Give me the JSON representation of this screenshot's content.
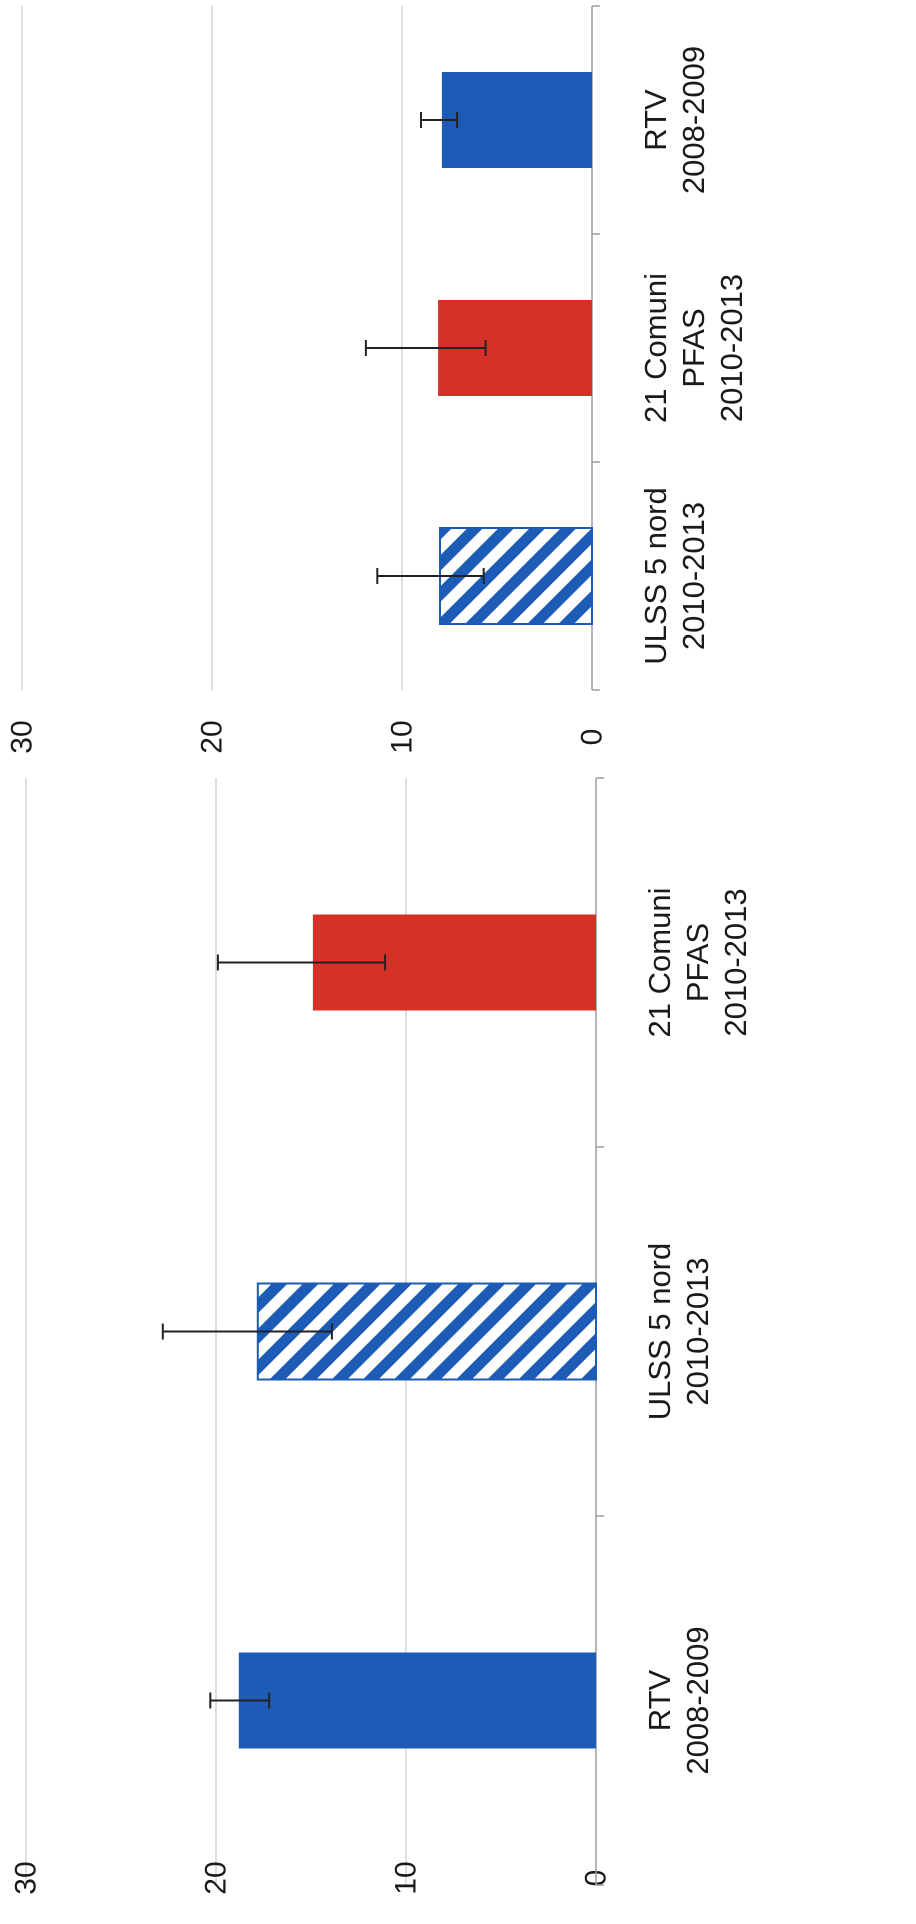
{
  "chart_data": [
    {
      "type": "bar",
      "orientation": "horizontal-bars (figure rotated 90 degrees)",
      "categories": [
        [
          "RTV",
          "2008-2009"
        ],
        [
          "ULSS 5 nord",
          "2010-2013"
        ],
        [
          "21 Comuni",
          "PFAS",
          "2010-2013"
        ]
      ],
      "values": [
        18.8,
        17.8,
        14.9
      ],
      "error_low": [
        17.2,
        13.9,
        11.1
      ],
      "error_high": [
        20.3,
        22.8,
        19.9
      ],
      "bar_styles": [
        "solid",
        "hatched",
        "solid"
      ],
      "bar_colors": [
        "#1c5cb6",
        "#1c5cb6",
        "#d63027"
      ],
      "xlim": [
        0,
        30
      ],
      "ticks": [
        "0",
        "10",
        "20",
        "30"
      ],
      "grid": true,
      "title": "",
      "xlabel": "",
      "ylabel": ""
    },
    {
      "type": "bar",
      "orientation": "horizontal-bars (figure rotated 90 degrees)",
      "categories": [
        [
          "ULSS 5 nord",
          "2010-2013"
        ],
        [
          "21 Comuni",
          "PFAS",
          "2010-2013"
        ],
        [
          "RTV",
          "2008-2009"
        ]
      ],
      "values": [
        8.0,
        8.1,
        7.9
      ],
      "error_low": [
        5.7,
        5.6,
        7.1
      ],
      "error_high": [
        11.3,
        11.9,
        9.0
      ],
      "bar_styles": [
        "hatched",
        "solid",
        "solid"
      ],
      "bar_colors": [
        "#1c5cb6",
        "#d63027",
        "#1c5cb6"
      ],
      "xlim": [
        0,
        30
      ],
      "ticks": [
        "0",
        "10",
        "20",
        "30"
      ],
      "grid": true,
      "title": "",
      "xlabel": "",
      "ylabel": ""
    }
  ]
}
